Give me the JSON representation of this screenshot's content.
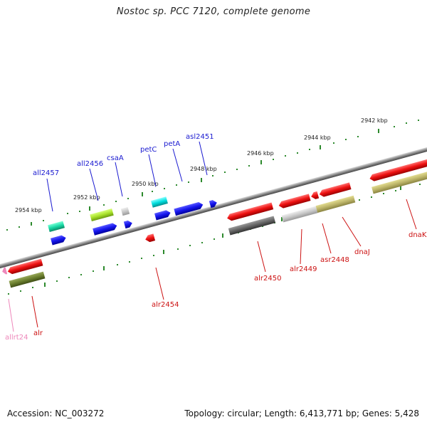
{
  "title": "Nostoc sp. PCC 7120, complete genome",
  "footer": {
    "accession": "Accession: NC_003272",
    "summary": "Topology: circular; Length: 6,413,771 bp; Genes: 5,428"
  },
  "colors": {
    "red": "#ee1111",
    "blue": "#1515ee",
    "backbone": "#888888",
    "tick": "#2d8a2d",
    "label_blue": "#1a1ad0",
    "label_red": "#cc1111",
    "label_pink": "#ee88bb"
  },
  "kbp_labels": [
    "2942 kbp",
    "2944 kbp",
    "2946 kbp",
    "2948 kbp",
    "2950 kbp",
    "2952 kbp",
    "2954 kbp"
  ],
  "genes_top": [
    "all2457",
    "all2456",
    "csaA",
    "petC",
    "petA",
    "asl2451"
  ],
  "genes_bottom": [
    "dnaK",
    "dnaJ",
    "asr2448",
    "alr2449",
    "alr2450",
    "alr2454",
    "alr",
    "allrt24"
  ]
}
